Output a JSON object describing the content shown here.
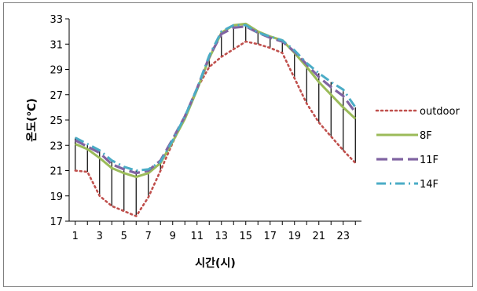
{
  "chart_data": {
    "type": "line",
    "title": "",
    "xlabel": "시간(시)",
    "ylabel": "온도(℃)",
    "x": [
      1,
      2,
      3,
      4,
      5,
      6,
      7,
      8,
      9,
      10,
      11,
      12,
      13,
      14,
      15,
      16,
      17,
      18,
      19,
      20,
      21,
      22,
      23,
      24
    ],
    "x_tick_labels": [
      "1",
      "3",
      "5",
      "7",
      "9",
      "11",
      "13",
      "15",
      "17",
      "19",
      "21",
      "23"
    ],
    "y_tick_labels": [
      "17",
      "19",
      "21",
      "23",
      "25",
      "27",
      "29",
      "31",
      "33"
    ],
    "ylim": [
      17,
      33
    ],
    "xlim": [
      0.5,
      24.5
    ],
    "grid": "vertical lines at each hour",
    "legend_position": "right",
    "series": [
      {
        "name": "outdoor",
        "color": "#c0504d",
        "style": "dotted",
        "values": [
          21.0,
          20.9,
          19.0,
          18.2,
          17.8,
          17.4,
          18.9,
          21.0,
          23.2,
          25.3,
          27.5,
          29.2,
          30.0,
          30.6,
          31.2,
          31.0,
          30.7,
          30.3,
          28.3,
          26.3,
          24.8,
          23.7,
          22.6,
          21.6
        ]
      },
      {
        "name": "8F",
        "color": "#9bbb59",
        "style": "solid",
        "values": [
          23.1,
          22.7,
          22.0,
          21.2,
          20.8,
          20.5,
          20.8,
          21.6,
          23.3,
          25.1,
          27.4,
          29.9,
          31.9,
          32.5,
          32.6,
          32.0,
          31.6,
          31.3,
          30.3,
          29.2,
          28.0,
          27.0,
          26.0,
          25.1
        ]
      },
      {
        "name": "11F",
        "color": "#8064a2",
        "style": "dashed",
        "values": [
          23.4,
          22.9,
          22.4,
          21.5,
          21.1,
          20.8,
          21.0,
          21.8,
          23.5,
          25.3,
          27.5,
          30.0,
          31.8,
          32.3,
          32.4,
          31.9,
          31.5,
          31.2,
          30.4,
          29.4,
          28.4,
          27.6,
          26.9,
          25.6
        ]
      },
      {
        "name": "14F",
        "color": "#4bacc6",
        "style": "dash-dot",
        "values": [
          23.6,
          23.1,
          22.6,
          21.8,
          21.3,
          21.0,
          21.1,
          21.7,
          23.4,
          25.3,
          27.5,
          30.1,
          32.0,
          32.5,
          32.5,
          31.9,
          31.6,
          31.3,
          30.5,
          29.5,
          28.7,
          28.0,
          27.4,
          26.0
        ]
      }
    ]
  }
}
